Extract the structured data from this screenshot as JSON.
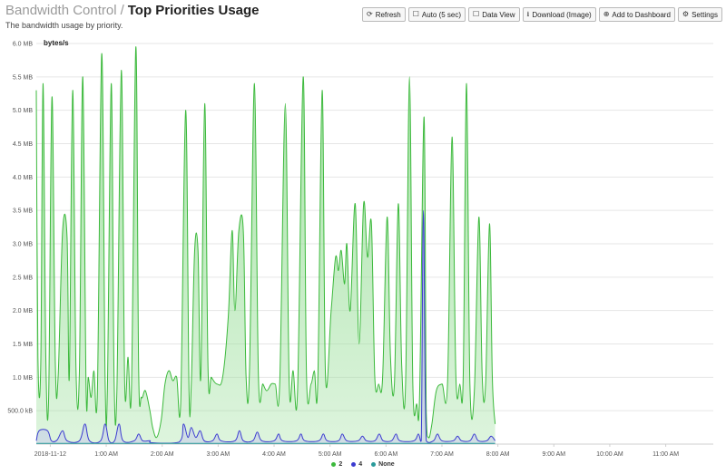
{
  "header": {
    "breadcrumb": "Bandwidth Control",
    "separator": "/",
    "title": "Top Priorities Usage",
    "subtitle": "The bandwidth usage by priority."
  },
  "toolbar": [
    {
      "label": "Refresh",
      "icon": "refresh-icon",
      "glyph": "⟳"
    },
    {
      "label": "Auto (5 sec)",
      "icon": "checkbox-icon",
      "glyph": "☐"
    },
    {
      "label": "Data View",
      "icon": "checkbox-icon",
      "glyph": "☐"
    },
    {
      "label": "Download (Image)",
      "icon": "download-icon",
      "glyph": "⭳"
    },
    {
      "label": "Add to Dashboard",
      "icon": "plus-circle-icon",
      "glyph": "⊕"
    },
    {
      "label": "Settings",
      "icon": "gear-icon",
      "glyph": "⚙"
    }
  ],
  "chart_data": {
    "type": "area",
    "ylabel": "bytes/s",
    "y_ticks": [
      "500.0 kB",
      "1.0 MB",
      "1.5 MB",
      "2.0 MB",
      "2.5 MB",
      "3.0 MB",
      "3.5 MB",
      "4.0 MB",
      "4.5 MB",
      "5.0 MB",
      "5.5 MB",
      "6.0 MB"
    ],
    "y_tick_values_mb": [
      0.5,
      1.0,
      1.5,
      2.0,
      2.5,
      3.0,
      3.5,
      4.0,
      4.5,
      5.0,
      5.5,
      6.0
    ],
    "ylim_mb": [
      0,
      6.0
    ],
    "x_ticks": [
      "2018-11-12",
      "1:00 AM",
      "2:00 AM",
      "3:00 AM",
      "4:00 AM",
      "5:00 AM",
      "6:00 AM",
      "7:00 AM",
      "8:00 AM",
      "9:00 AM",
      "10:00 AM",
      "11:00 AM"
    ],
    "x_tick_hours": [
      0,
      1,
      2,
      3,
      4,
      5,
      6,
      7,
      8,
      9,
      10,
      11
    ],
    "xlim_hours": [
      -0.25,
      11.85
    ],
    "grid": true,
    "legend_position": "bottom",
    "series": [
      {
        "name": "2",
        "color": "#3cb93c",
        "fill": "#9fe09f",
        "points_mb": [
          [
            -0.25,
            5.3
          ],
          [
            -0.22,
            1.3
          ],
          [
            -0.17,
            1.2
          ],
          [
            -0.13,
            5.4
          ],
          [
            -0.08,
            1.3
          ],
          [
            -0.03,
            0.7
          ],
          [
            0.03,
            5.2
          ],
          [
            0.09,
            1.2
          ],
          [
            0.14,
            1.0
          ],
          [
            0.22,
            3.2
          ],
          [
            0.3,
            3.1
          ],
          [
            0.34,
            1.0
          ],
          [
            0.4,
            5.3
          ],
          [
            0.46,
            1.1
          ],
          [
            0.52,
            1.1
          ],
          [
            0.58,
            5.5
          ],
          [
            0.64,
            0.8
          ],
          [
            0.68,
            1.0
          ],
          [
            0.73,
            0.7
          ],
          [
            0.78,
            1.1
          ],
          [
            0.84,
            0.7
          ],
          [
            0.92,
            5.85
          ],
          [
            0.98,
            1.0
          ],
          [
            1.02,
            0.8
          ],
          [
            1.09,
            5.4
          ],
          [
            1.14,
            1.0
          ],
          [
            1.19,
            0.8
          ],
          [
            1.27,
            5.6
          ],
          [
            1.33,
            0.9
          ],
          [
            1.39,
            1.3
          ],
          [
            1.45,
            0.8
          ],
          [
            1.53,
            5.95
          ],
          [
            1.58,
            1.1
          ],
          [
            1.63,
            0.7
          ],
          [
            1.7,
            0.8
          ],
          [
            1.78,
            0.5
          ],
          [
            1.83,
            0.25
          ],
          [
            1.9,
            0.1
          ],
          [
            1.98,
            0.35
          ],
          [
            2.05,
            0.9
          ],
          [
            2.12,
            1.1
          ],
          [
            2.19,
            0.95
          ],
          [
            2.26,
            1.0
          ],
          [
            2.33,
            0.6
          ],
          [
            2.42,
            5.0
          ],
          [
            2.48,
            0.8
          ],
          [
            2.52,
            0.9
          ],
          [
            2.58,
            2.9
          ],
          [
            2.64,
            2.9
          ],
          [
            2.69,
            1.0
          ],
          [
            2.76,
            5.1
          ],
          [
            2.82,
            1.1
          ],
          [
            2.88,
            1.0
          ],
          [
            2.98,
            0.9
          ],
          [
            3.08,
            1.0
          ],
          [
            3.18,
            1.9
          ],
          [
            3.25,
            3.2
          ],
          [
            3.3,
            2.0
          ],
          [
            3.37,
            3.2
          ],
          [
            3.45,
            3.2
          ],
          [
            3.5,
            1.0
          ],
          [
            3.56,
            1.1
          ],
          [
            3.65,
            5.4
          ],
          [
            3.72,
            1.0
          ],
          [
            3.8,
            0.9
          ],
          [
            3.87,
            0.8
          ],
          [
            3.95,
            0.9
          ],
          [
            4.02,
            0.9
          ],
          [
            4.1,
            0.9
          ],
          [
            4.2,
            5.1
          ],
          [
            4.27,
            0.9
          ],
          [
            4.34,
            1.1
          ],
          [
            4.42,
            0.8
          ],
          [
            4.52,
            5.5
          ],
          [
            4.58,
            1.0
          ],
          [
            4.66,
            0.9
          ],
          [
            4.72,
            1.1
          ],
          [
            4.78,
            0.9
          ],
          [
            4.86,
            5.3
          ],
          [
            4.92,
            1.0
          ],
          [
            5.02,
            2.0
          ],
          [
            5.1,
            2.8
          ],
          [
            5.15,
            2.6
          ],
          [
            5.2,
            2.9
          ],
          [
            5.26,
            2.4
          ],
          [
            5.3,
            3.0
          ],
          [
            5.36,
            2.0
          ],
          [
            5.45,
            3.6
          ],
          [
            5.52,
            1.5
          ],
          [
            5.6,
            3.6
          ],
          [
            5.67,
            2.8
          ],
          [
            5.74,
            3.3
          ],
          [
            5.8,
            1.0
          ],
          [
            5.87,
            0.9
          ],
          [
            5.94,
            1.0
          ],
          [
            6.02,
            3.4
          ],
          [
            6.08,
            1.3
          ],
          [
            6.15,
            0.9
          ],
          [
            6.22,
            3.6
          ],
          [
            6.28,
            1.2
          ],
          [
            6.35,
            0.9
          ],
          [
            6.42,
            5.5
          ],
          [
            6.48,
            0.9
          ],
          [
            6.55,
            0.6
          ],
          [
            6.6,
            0.7
          ],
          [
            6.68,
            4.9
          ],
          [
            6.72,
            0.5
          ],
          [
            6.76,
            0.1
          ],
          [
            6.82,
            0.3
          ],
          [
            6.9,
            0.8
          ],
          [
            7.0,
            0.9
          ],
          [
            7.1,
            0.9
          ],
          [
            7.18,
            4.6
          ],
          [
            7.25,
            1.0
          ],
          [
            7.32,
            0.9
          ],
          [
            7.38,
            1.0
          ],
          [
            7.44,
            5.4
          ],
          [
            7.5,
            0.9
          ],
          [
            7.58,
            0.8
          ],
          [
            7.66,
            3.4
          ],
          [
            7.72,
            1.0
          ],
          [
            7.78,
            0.9
          ],
          [
            7.85,
            3.3
          ],
          [
            7.9,
            1.0
          ],
          [
            7.95,
            0.3
          ]
        ]
      },
      {
        "name": "4",
        "color": "#3b3bd0",
        "fill": "#b8b8f0",
        "points_mb": [
          [
            -0.25,
            0.05
          ],
          [
            -0.2,
            0.2
          ],
          [
            -0.05,
            0.2
          ],
          [
            0.02,
            0.05
          ],
          [
            0.12,
            0.06
          ],
          [
            0.22,
            0.2
          ],
          [
            0.3,
            0.05
          ],
          [
            0.52,
            0.05
          ],
          [
            0.62,
            0.3
          ],
          [
            0.7,
            0.05
          ],
          [
            0.9,
            0.05
          ],
          [
            0.98,
            0.3
          ],
          [
            1.05,
            0.05
          ],
          [
            1.15,
            0.05
          ],
          [
            1.23,
            0.3
          ],
          [
            1.3,
            0.05
          ],
          [
            1.5,
            0.05
          ],
          [
            1.58,
            0.15
          ],
          [
            1.65,
            0.05
          ],
          [
            1.78,
            0.05
          ],
          [
            1.82,
            0.02
          ],
          [
            2.3,
            0.03
          ],
          [
            2.38,
            0.3
          ],
          [
            2.46,
            0.1
          ],
          [
            2.52,
            0.25
          ],
          [
            2.6,
            0.1
          ],
          [
            2.68,
            0.2
          ],
          [
            2.75,
            0.05
          ],
          [
            2.9,
            0.05
          ],
          [
            2.98,
            0.15
          ],
          [
            3.05,
            0.05
          ],
          [
            3.3,
            0.05
          ],
          [
            3.38,
            0.2
          ],
          [
            3.45,
            0.05
          ],
          [
            3.62,
            0.05
          ],
          [
            3.7,
            0.18
          ],
          [
            3.78,
            0.05
          ],
          [
            4.0,
            0.05
          ],
          [
            4.08,
            0.15
          ],
          [
            4.15,
            0.05
          ],
          [
            4.4,
            0.05
          ],
          [
            4.48,
            0.15
          ],
          [
            4.55,
            0.05
          ],
          [
            4.8,
            0.05
          ],
          [
            4.88,
            0.15
          ],
          [
            4.95,
            0.05
          ],
          [
            5.15,
            0.05
          ],
          [
            5.22,
            0.15
          ],
          [
            5.3,
            0.05
          ],
          [
            5.5,
            0.05
          ],
          [
            5.58,
            0.12
          ],
          [
            5.65,
            0.05
          ],
          [
            5.8,
            0.05
          ],
          [
            5.88,
            0.15
          ],
          [
            5.95,
            0.05
          ],
          [
            6.1,
            0.05
          ],
          [
            6.18,
            0.15
          ],
          [
            6.25,
            0.05
          ],
          [
            6.5,
            0.05
          ],
          [
            6.58,
            0.15
          ],
          [
            6.63,
            0.05
          ],
          [
            6.67,
            3.5
          ],
          [
            6.72,
            0.05
          ],
          [
            6.85,
            0.05
          ],
          [
            6.92,
            0.15
          ],
          [
            7.0,
            0.05
          ],
          [
            7.2,
            0.05
          ],
          [
            7.28,
            0.12
          ],
          [
            7.35,
            0.05
          ],
          [
            7.5,
            0.05
          ],
          [
            7.58,
            0.15
          ],
          [
            7.65,
            0.05
          ],
          [
            7.8,
            0.05
          ],
          [
            7.88,
            0.12
          ],
          [
            7.95,
            0.05
          ]
        ]
      },
      {
        "name": "None",
        "color": "#2a9a9a",
        "fill": "none",
        "points_mb": [
          [
            -0.25,
            0.01
          ],
          [
            7.95,
            0.01
          ]
        ]
      }
    ]
  }
}
